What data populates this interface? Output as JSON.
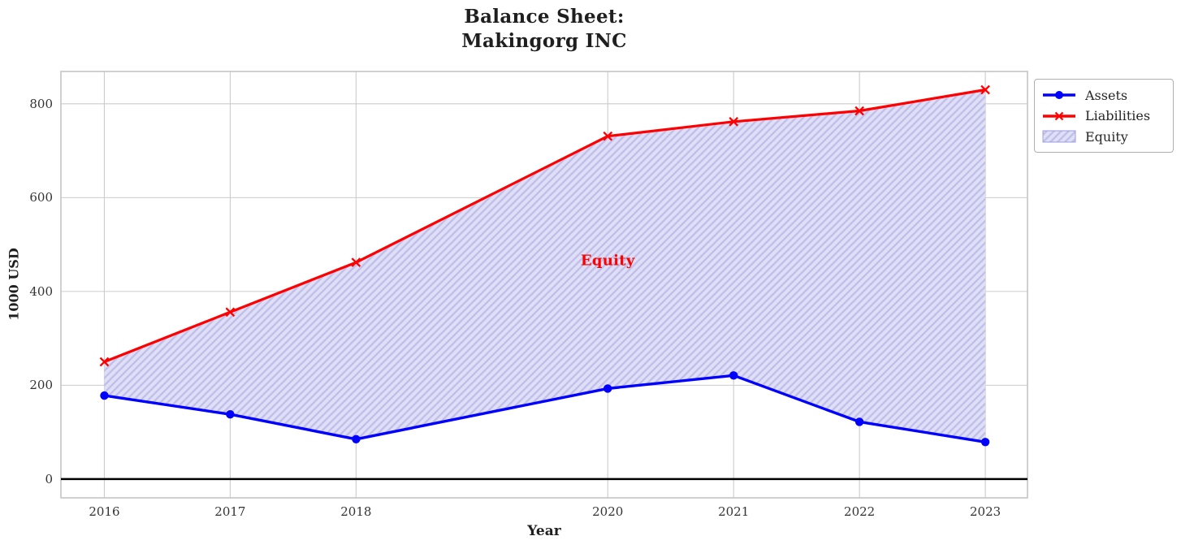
{
  "chart_data": {
    "type": "line",
    "title": "Balance Sheet:\nMakingorg INC",
    "title_lines": [
      "Balance Sheet:",
      "Makingorg INC"
    ],
    "xlabel": "Year",
    "ylabel": "1000 USD",
    "x": [
      2016,
      2017,
      2018,
      2020,
      2021,
      2022,
      2023
    ],
    "x_tick_labels": [
      "2016",
      "2017",
      "2018",
      "2020",
      "2021",
      "2022",
      "2023"
    ],
    "y_ticks": [
      0,
      200,
      400,
      600,
      800
    ],
    "y_tick_labels": [
      "0",
      "200",
      "400",
      "600",
      "800"
    ],
    "xlim": [
      2015.655,
      2023.335
    ],
    "ylim": [
      -40,
      869
    ],
    "grid": true,
    "series": [
      {
        "name": "Assets",
        "color": "#0000ff",
        "marker": "circle",
        "values": [
          178,
          138,
          85,
          193,
          221,
          122,
          79
        ]
      },
      {
        "name": "Liabilities",
        "color": "#ff0000",
        "marker": "x",
        "values": [
          250,
          356,
          462,
          731,
          762,
          785,
          830
        ]
      }
    ],
    "fill_between": {
      "name": "Equity",
      "between": [
        "Assets",
        "Liabilities"
      ],
      "face_color": "#dfdff6",
      "hatch_color": "#c0c0ec",
      "hatch": "//"
    },
    "annotation": {
      "text": "Equity",
      "x": 2020,
      "y": 465,
      "color": "#ff0000"
    },
    "baseline": {
      "y": 0,
      "color": "#000000"
    },
    "legend": {
      "position": "upper-right-outside",
      "entries": [
        "Assets",
        "Liabilities",
        "Equity"
      ]
    },
    "colors": {
      "grid": "#cccccc",
      "spine": "#c4c4c4",
      "tick_text": "#333333",
      "title_text": "#1f1f1f",
      "legend_border": "#b0b0b0",
      "background": "#ffffff"
    }
  }
}
